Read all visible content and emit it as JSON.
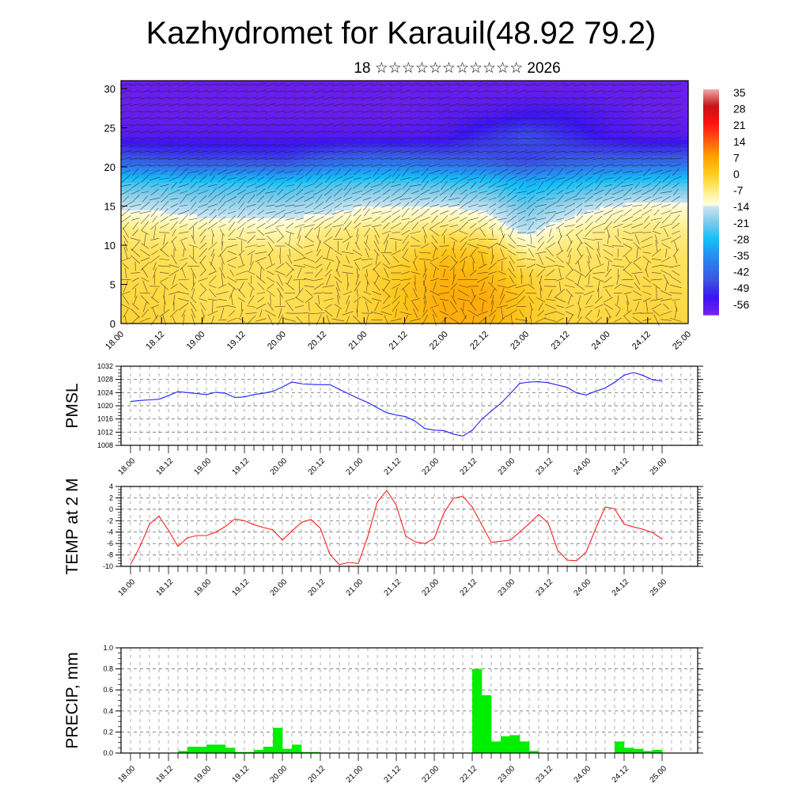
{
  "header": {
    "title": "Kazhydromet for Karauil(48.92 79.2)",
    "subtitle": "18 ☆☆☆☆☆☆☆☆☆☆☆ 2026"
  },
  "time_labels": [
    "18.00",
    "18.12",
    "19.00",
    "19.12",
    "20.00",
    "20.12",
    "21.00",
    "21.12",
    "22.00",
    "22.12",
    "23.00",
    "23.12",
    "24.00",
    "24.12",
    "25.00"
  ],
  "chart_data": [
    {
      "id": "cross-section",
      "type": "heatmap",
      "title": "",
      "xlabel": "",
      "ylabel": "",
      "ylim": [
        0,
        30
      ],
      "yticks": [
        0,
        5,
        10,
        15,
        20,
        25,
        30
      ],
      "x_hours_step": 12,
      "z_levels": [
        0,
        3,
        6,
        9,
        12,
        15,
        18,
        21,
        24,
        27,
        30
      ],
      "values": [
        [
          -2,
          -3,
          -4,
          -4,
          -4,
          -3,
          -2,
          1,
          4,
          4,
          0,
          -3,
          -3,
          -2,
          -3
        ],
        [
          -3,
          -3,
          -5,
          -5,
          -5,
          -4,
          -3,
          1,
          5,
          5,
          0,
          -4,
          -4,
          -3,
          -4
        ],
        [
          -4,
          -4,
          -5,
          -5,
          -5,
          -4,
          -3,
          0,
          4,
          3,
          -2,
          -5,
          -5,
          -4,
          -5
        ],
        [
          -5,
          -5,
          -6,
          -6,
          -6,
          -5,
          -5,
          -3,
          1,
          0,
          -8,
          -6,
          -6,
          -5,
          -6
        ],
        [
          -7,
          -8,
          -9,
          -10,
          -11,
          -8,
          -7,
          -7,
          -6,
          -8,
          -16,
          -10,
          -8,
          -7,
          -8
        ],
        [
          -15,
          -16,
          -18,
          -18,
          -18,
          -17,
          -14,
          -14,
          -14,
          -16,
          -22,
          -18,
          -14,
          -12,
          -13
        ],
        [
          -25,
          -25,
          -26,
          -26,
          -27,
          -25,
          -24,
          -24,
          -25,
          -26,
          -30,
          -28,
          -26,
          -25,
          -25
        ],
        [
          -44,
          -46,
          -47,
          -47,
          -48,
          -44,
          -42,
          -42,
          -44,
          -45,
          -48,
          -45,
          -44,
          -44,
          -44
        ],
        [
          -56,
          -56,
          -56,
          -56,
          -56,
          -56,
          -56,
          -56,
          -55,
          -50,
          -46,
          -50,
          -54,
          -56,
          -56
        ],
        [
          -58,
          -58,
          -58,
          -58,
          -58,
          -58,
          -58,
          -58,
          -57,
          -56,
          -54,
          -54,
          -56,
          -58,
          -58
        ],
        [
          -58,
          -58,
          -58,
          -58,
          -58,
          -58,
          -58,
          -58,
          -58,
          -58,
          -58,
          -58,
          -58,
          -58,
          -58
        ]
      ],
      "colorbar": {
        "labels": [
          "35",
          "28",
          "21",
          "14",
          "7",
          "0",
          "-7",
          "-14",
          "-21",
          "-28",
          "-35",
          "-42",
          "-49",
          "-56"
        ],
        "stops": [
          [
            -60,
            "#7a22ea"
          ],
          [
            -53,
            "#3b14f2"
          ],
          [
            -45,
            "#3a58e2"
          ],
          [
            -38,
            "#2c7cf0"
          ],
          [
            -28,
            "#12c0fa"
          ],
          [
            -21,
            "#7ccbea"
          ],
          [
            -14.1,
            "#cde6f2"
          ],
          [
            -14,
            "#fffde6"
          ],
          [
            -10,
            "#fff6a8"
          ],
          [
            -5,
            "#ffe056"
          ],
          [
            0,
            "#ffc81e"
          ],
          [
            7,
            "#ff9e00"
          ],
          [
            14,
            "#ff5410"
          ],
          [
            21,
            "#ff1010"
          ],
          [
            28,
            "#c41414"
          ],
          [
            35,
            "#f2a8a8"
          ]
        ]
      }
    },
    {
      "id": "pmsl",
      "type": "line",
      "ylabel": "PMSL",
      "ylim": [
        1008,
        1032
      ],
      "yticks": [
        1008,
        1012,
        1016,
        1020,
        1024,
        1028,
        1032
      ],
      "step_hours": 3,
      "color": "#2020ff",
      "values": [
        1021.3,
        1021.6,
        1021.8,
        1022.0,
        1023.1,
        1024.3,
        1024.0,
        1023.7,
        1023.4,
        1024.1,
        1023.8,
        1022.5,
        1022.7,
        1023.4,
        1023.8,
        1024.4,
        1025.7,
        1027.2,
        1026.7,
        1026.5,
        1026.4,
        1026.4,
        1025.0,
        1023.6,
        1022.2,
        1021.0,
        1019.4,
        1017.9,
        1017.2,
        1016.7,
        1015.3,
        1013.1,
        1012.6,
        1012.5,
        1011.4,
        1010.8,
        1012.6,
        1015.9,
        1018.4,
        1020.7,
        1023.7,
        1026.8,
        1027.2,
        1027.3,
        1027.0,
        1026.3,
        1025.6,
        1023.9,
        1023.3,
        1024.4,
        1025.4,
        1027.1,
        1029.3,
        1030.1,
        1029.2,
        1027.9,
        1027.5
      ]
    },
    {
      "id": "temp2m",
      "type": "line",
      "ylabel": "TEMP at 2 M",
      "ylim": [
        -10,
        4
      ],
      "yticks": [
        -10,
        -8,
        -6,
        -4,
        -2,
        0,
        2,
        4
      ],
      "step_hours": 3,
      "color": "#ff2020",
      "values": [
        -9.7,
        -6.5,
        -2.6,
        -1.2,
        -3.7,
        -6.5,
        -5.0,
        -4.6,
        -4.6,
        -4.0,
        -3.0,
        -1.7,
        -2.0,
        -2.7,
        -3.2,
        -3.6,
        -5.4,
        -3.8,
        -2.3,
        -1.8,
        -3.3,
        -7.9,
        -9.7,
        -9.3,
        -9.5,
        -4.7,
        1.3,
        3.3,
        0.7,
        -4.7,
        -5.7,
        -6.0,
        -5.1,
        -0.7,
        1.9,
        2.3,
        0.4,
        -2.7,
        -5.8,
        -5.6,
        -5.4,
        -4.0,
        -2.5,
        -0.9,
        -2.4,
        -7.2,
        -8.9,
        -9.0,
        -7.5,
        -3.4,
        0.4,
        0.1,
        -2.6,
        -3.1,
        -3.5,
        -4.1,
        -5.2
      ]
    },
    {
      "id": "precip",
      "type": "bar",
      "ylabel": "PRECIP, mm",
      "ylim": [
        0,
        1.0
      ],
      "yticks": [
        "0.0",
        "0.2",
        "0.4",
        "0.6",
        "0.8",
        "1.0"
      ],
      "step_hours": 3,
      "color": "#00ee00",
      "values": [
        0,
        0,
        0,
        0,
        0,
        0,
        0.02,
        0.06,
        0.06,
        0.08,
        0.08,
        0.05,
        0.01,
        0.01,
        0.03,
        0.06,
        0.24,
        0.04,
        0.08,
        0.01,
        0.01,
        0,
        0,
        0,
        0,
        0,
        0,
        0,
        0,
        0,
        0,
        0,
        0,
        0,
        0,
        0,
        0,
        0.8,
        0.55,
        0.11,
        0.16,
        0.17,
        0.11,
        0.02,
        0,
        0,
        0,
        0,
        0,
        0,
        0,
        0,
        0.11,
        0.05,
        0.04,
        0.02,
        0.03
      ]
    }
  ]
}
